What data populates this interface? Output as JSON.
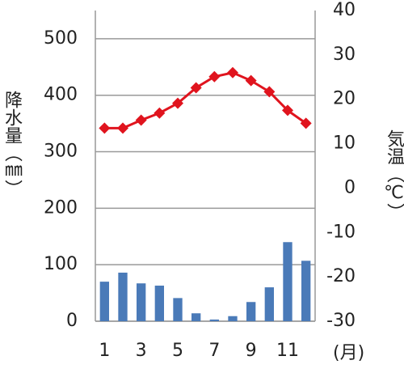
{
  "chart_data": {
    "type": "climate",
    "categories": [
      "1",
      null,
      "3",
      null,
      "5",
      null,
      "7",
      null,
      "9",
      null,
      "11",
      null
    ],
    "x_unit_label": "(月)",
    "ylabel": "降水量（㎜）",
    "y2label": "気温（℃）",
    "ylim": [
      0,
      550
    ],
    "yticks": [
      0,
      100,
      200,
      300,
      400,
      500
    ],
    "y2lim": [
      -30,
      40
    ],
    "y2ticks": [
      -30,
      -20,
      -10,
      0,
      10,
      20,
      30,
      40
    ],
    "grid": true,
    "series": [
      {
        "name": "降水量",
        "kind": "bar",
        "color": "#4a7ab8",
        "values": [
          70,
          86,
          67,
          63,
          41,
          14,
          3,
          9,
          34,
          60,
          140,
          107
        ]
      },
      {
        "name": "気温",
        "kind": "line",
        "axis": "y2",
        "color": "#e0141e",
        "values": [
          13.5,
          13.5,
          15.3,
          16.9,
          19.1,
          22.6,
          25.1,
          26.0,
          24.2,
          21.7,
          17.5,
          14.6
        ]
      }
    ]
  }
}
